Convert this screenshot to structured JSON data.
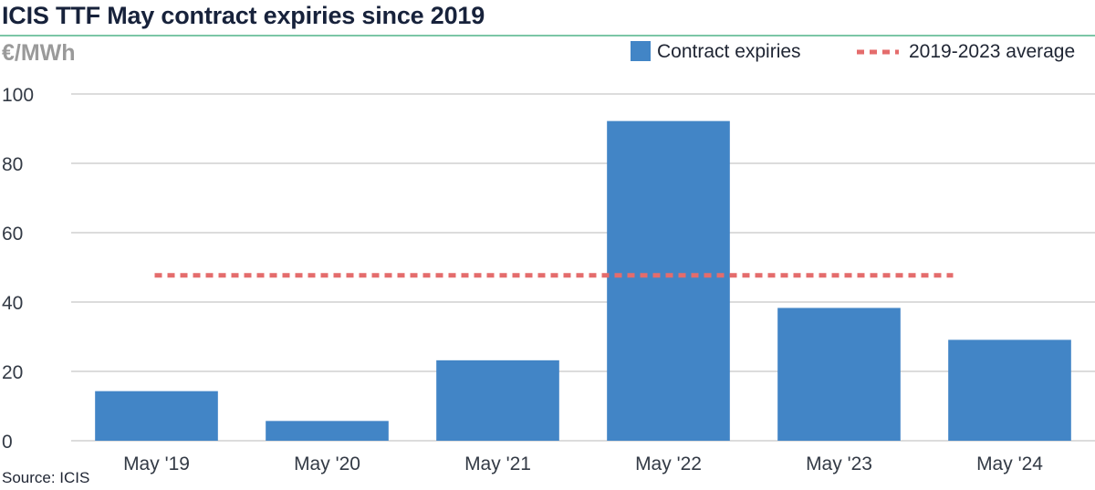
{
  "title": "ICIS TTF May contract expiries since 2019",
  "unit_label": "€/MWh",
  "source": "Source: ICIS",
  "colors": {
    "bar": "#4285c6",
    "average": "#e46c6c",
    "grid": "#c8c8c8",
    "title_rule": "#7cc6a6"
  },
  "chart_data": {
    "type": "bar",
    "categories": [
      "May '19",
      "May '20",
      "May '21",
      "May '22",
      "May '23",
      "May '24"
    ],
    "series": [
      {
        "name": "Contract expiries",
        "values": [
          14.3,
          5.7,
          23.2,
          92.2,
          38.3,
          29.1
        ]
      }
    ],
    "reference_line": {
      "name": "2019-2023 average",
      "value": 47.7,
      "style": "dashed"
    },
    "ylim": [
      0,
      100
    ],
    "yticks": [
      "0",
      "20",
      "40",
      "60",
      "80",
      "100"
    ],
    "grid": true,
    "legend_position": "top-right"
  }
}
